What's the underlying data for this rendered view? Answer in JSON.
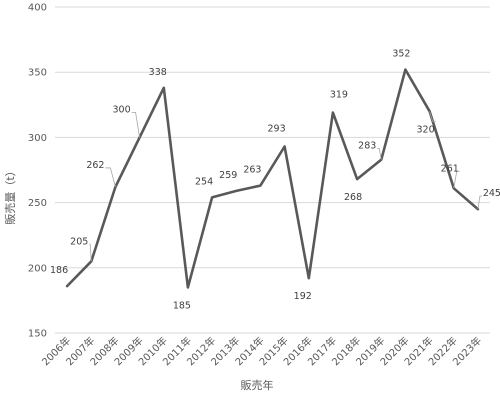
{
  "chart_data": {
    "type": "line",
    "xlabel": "販売年",
    "ylabel": "販売量（t）",
    "ylim": [
      150,
      400
    ],
    "yticks": [
      150,
      200,
      250,
      300,
      350,
      400
    ],
    "grid": true,
    "line_color": "#595959",
    "grid_color": "#d9d9d9",
    "categories": [
      "2006年",
      "2007年",
      "2008年",
      "2009年",
      "2010年",
      "2011年",
      "2012年",
      "2013年",
      "2014年",
      "2015年",
      "2016年",
      "2017年",
      "2018年",
      "2019年",
      "2020年",
      "2021年",
      "2022年",
      "2023年"
    ],
    "values": [
      186,
      205,
      262,
      300,
      338,
      185,
      254,
      259,
      263,
      293,
      192,
      319,
      268,
      283,
      352,
      320,
      261,
      245
    ],
    "data_labels": [
      "186",
      "205",
      "262",
      "300",
      "338",
      "185",
      "254",
      "259",
      "263",
      "293",
      "192",
      "319",
      "268",
      "283",
      "352",
      "320",
      "261",
      "245"
    ]
  }
}
